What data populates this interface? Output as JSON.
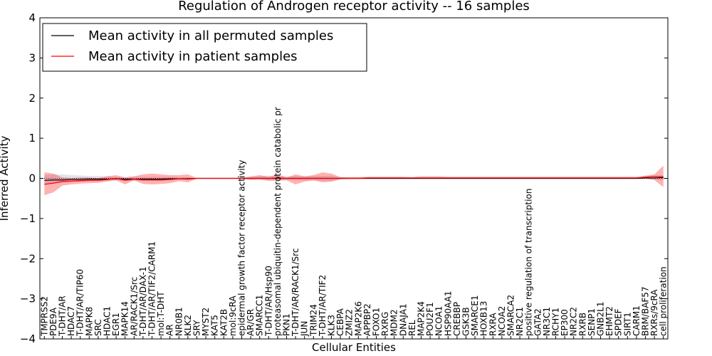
{
  "chart_data": {
    "type": "line",
    "title": "Regulation of Androgen receptor activity -- 16 samples",
    "xlabel": "Cellular Entities",
    "ylabel": "Inferred Activity",
    "ylim": [
      -4,
      4
    ],
    "yticks": [
      4,
      3,
      2,
      1,
      0,
      -1,
      -2,
      -3,
      -4
    ],
    "ytick_labels": [
      "4",
      "3",
      "2",
      "1",
      "0",
      "−1",
      "−2",
      "−3",
      "−4"
    ],
    "legend_position": "top-left",
    "categories": [
      "TMPRSS2",
      "PDE9A",
      "T-DHT/AR",
      "HDAC7",
      "T-DHT/AR/TIP60",
      "MAPK8",
      "SRC",
      "HDAC1",
      "EGR1",
      "MAPK14",
      "AR/RACK1/Src",
      "T-DHT/AR/DAX-1",
      "T-DHT/AR/TIF2/CARM1",
      "mol:T-DHT",
      "AR",
      "NR0B1",
      "KLK2",
      "SRY",
      "MYST2",
      "KAT5",
      "KAT2B",
      "mol:9cRA",
      "epidermal growth factor receptor activity",
      "AR/GR",
      "SMARCC1",
      "T-DHT/AR/Hsp90",
      "proteasomal ubiquitin-dependent protein catabolic pr",
      "PKN1",
      "T-DHT/AR/RACK1/Src",
      "JUN",
      "TRIM24",
      "T-DHT/AR/TIF2",
      "KLK3",
      "CEBPA",
      "ZMIZ2",
      "MAP2K6",
      "APPBP2",
      "FOXO1",
      "RXRG",
      "MDM2",
      "DNAJA1",
      "REL",
      "MAP2K4",
      "POU2F1",
      "NCOA1",
      "HSP90AA1",
      "CREBBP",
      "GSK3B",
      "SMARCE1",
      "HOXB13",
      "RXRA",
      "NCOA2",
      "SMARCA2",
      "NR2C1",
      "positive regulation of transcription",
      "GATA2",
      "NR3C1",
      "RCHY1",
      "EP300",
      "NR2C2",
      "RXRB",
      "SENP1",
      "GNB2L1",
      "EHMT2",
      "SPDEF",
      "SIRT1",
      "CARM1",
      "BRM/BAF57",
      "RXRs/9cRA",
      "cell proliferation"
    ],
    "series": [
      {
        "name": "Mean activity in all permuted samples",
        "color": "#000000",
        "values": [
          -0.05,
          -0.04,
          -0.04,
          -0.03,
          -0.03,
          -0.02,
          -0.02,
          -0.02,
          -0.01,
          -0.02,
          -0.02,
          -0.02,
          -0.02,
          -0.02,
          -0.01,
          -0.01,
          -0.01,
          0,
          0,
          0,
          0,
          0,
          0,
          0,
          0,
          0,
          0,
          0,
          0,
          0,
          0,
          0,
          0,
          0,
          0,
          0,
          0,
          0,
          0,
          0,
          0,
          0,
          0,
          0,
          0,
          0,
          0,
          0,
          0,
          0,
          0,
          0,
          0,
          0,
          0,
          0,
          0,
          0,
          0,
          0,
          0,
          0,
          0,
          0,
          0,
          0,
          0,
          0.01,
          0.01,
          0.02
        ],
        "band_low": [
          -0.15,
          -0.12,
          -0.1,
          -0.08,
          -0.08,
          -0.07,
          -0.07,
          -0.06,
          -0.05,
          -0.06,
          -0.06,
          -0.06,
          -0.06,
          -0.06,
          -0.05,
          -0.04,
          -0.03,
          -0.01,
          -0.01,
          -0.01,
          -0.01,
          -0.01,
          -0.01,
          -0.03,
          -0.04,
          -0.06,
          -0.05,
          -0.04,
          -0.04,
          -0.05,
          -0.05,
          -0.06,
          -0.07,
          -0.03,
          -0.02,
          -0.02,
          -0.02,
          -0.02,
          -0.02,
          -0.02,
          -0.02,
          -0.02,
          -0.02,
          -0.02,
          -0.02,
          -0.02,
          -0.02,
          -0.02,
          -0.02,
          -0.02,
          -0.02,
          -0.02,
          -0.02,
          -0.02,
          -0.02,
          -0.02,
          -0.02,
          -0.02,
          -0.02,
          -0.02,
          -0.02,
          -0.02,
          -0.02,
          -0.02,
          -0.02,
          -0.02,
          -0.02,
          -0.02,
          -0.03,
          -0.05
        ],
        "band_high": [
          0.08,
          0.1,
          0.1,
          0.08,
          0.07,
          0.06,
          0.06,
          0.05,
          0.04,
          0.04,
          0.04,
          0.04,
          0.04,
          0.04,
          0.04,
          0.03,
          0.03,
          0.01,
          0.01,
          0.01,
          0.01,
          0.01,
          0.01,
          0.03,
          0.05,
          0.07,
          0.06,
          0.05,
          0.05,
          0.05,
          0.06,
          0.06,
          0.06,
          0.03,
          0.02,
          0.02,
          0.02,
          0.02,
          0.02,
          0.02,
          0.02,
          0.02,
          0.02,
          0.02,
          0.02,
          0.02,
          0.02,
          0.02,
          0.02,
          0.02,
          0.02,
          0.02,
          0.02,
          0.02,
          0.02,
          0.02,
          0.02,
          0.02,
          0.02,
          0.02,
          0.02,
          0.02,
          0.02,
          0.02,
          0.02,
          0.02,
          0.02,
          0.03,
          0.05,
          0.08
        ]
      },
      {
        "name": "Mean activity in patient samples",
        "color": "#ff0000",
        "values": [
          -0.15,
          -0.12,
          -0.08,
          -0.07,
          -0.06,
          -0.05,
          -0.05,
          -0.03,
          0,
          -0.05,
          -0.02,
          -0.04,
          -0.04,
          -0.04,
          -0.03,
          -0.01,
          -0.02,
          0,
          0,
          0,
          0,
          0,
          0,
          0,
          0,
          0,
          0.01,
          0,
          0,
          0,
          0,
          0,
          0,
          0,
          0,
          0,
          0.01,
          0.01,
          0.01,
          0.01,
          0.01,
          0.01,
          0.01,
          0.01,
          0.01,
          0.01,
          0.01,
          0.01,
          0.01,
          0.01,
          0.01,
          0.01,
          0.01,
          0.01,
          0.01,
          0.01,
          0.01,
          0.01,
          0.01,
          0.01,
          0.01,
          0.01,
          0.01,
          0.01,
          0.01,
          0.01,
          0.01,
          0.03,
          0.05,
          0.04
        ],
        "band_low": [
          -0.42,
          -0.35,
          -0.18,
          -0.15,
          -0.13,
          -0.12,
          -0.11,
          -0.08,
          -0.05,
          -0.15,
          -0.05,
          -0.14,
          -0.15,
          -0.14,
          -0.12,
          -0.07,
          -0.1,
          -0.01,
          -0.01,
          -0.01,
          -0.01,
          -0.01,
          -0.01,
          -0.04,
          -0.02,
          -0.06,
          -0.05,
          -0.05,
          -0.15,
          -0.08,
          -0.05,
          -0.1,
          -0.08,
          -0.02,
          -0.01,
          -0.01,
          -0.01,
          -0.01,
          -0.01,
          -0.01,
          -0.01,
          -0.01,
          -0.01,
          -0.01,
          -0.01,
          -0.01,
          -0.01,
          -0.01,
          -0.01,
          -0.01,
          -0.01,
          -0.01,
          -0.01,
          -0.01,
          -0.01,
          -0.01,
          -0.01,
          -0.01,
          -0.01,
          -0.01,
          -0.01,
          -0.01,
          -0.01,
          -0.01,
          -0.01,
          -0.01,
          -0.01,
          -0.01,
          -0.04,
          -0.22
        ],
        "band_high": [
          0.15,
          0.12,
          0.02,
          0.01,
          0.02,
          0.02,
          0.01,
          0.05,
          0.08,
          0.02,
          0.05,
          0.1,
          0.12,
          0.1,
          0.08,
          0.08,
          0.1,
          0.01,
          0.01,
          0.01,
          0.01,
          0.01,
          0.01,
          0.05,
          0.08,
          0.04,
          0.1,
          0.02,
          0.1,
          0.05,
          0.08,
          0.15,
          0.12,
          0.03,
          0.03,
          0.03,
          0.04,
          0.04,
          0.04,
          0.04,
          0.04,
          0.03,
          0.05,
          0.05,
          0.05,
          0.04,
          0.04,
          0.04,
          0.04,
          0.04,
          0.04,
          0.04,
          0.04,
          0.04,
          0.04,
          0.04,
          0.04,
          0.04,
          0.04,
          0.04,
          0.04,
          0.04,
          0.04,
          0.04,
          0.04,
          0.04,
          0.04,
          0.07,
          0.1,
          0.32
        ]
      }
    ]
  }
}
